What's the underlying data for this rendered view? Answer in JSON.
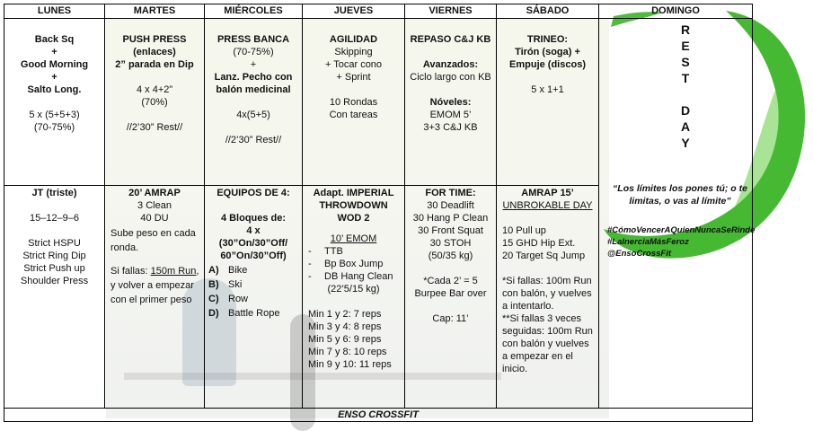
{
  "days": [
    "LUNES",
    "MARTES",
    "MIÉRCOLES",
    "JUEVES",
    "VIERNES",
    "SÁBADO",
    "DOMINGO"
  ],
  "top": {
    "lunes": [
      "Back Sq",
      "+",
      "Good Morning",
      "+",
      "Salto Long.",
      "",
      "5 x (5+5+3)",
      "(70-75%)"
    ],
    "martes": {
      "title": "PUSH PRESS",
      "lines": [
        "(enlaces)",
        "2” parada en Dip",
        "",
        "4 x 4+2”",
        "(70%)",
        "",
        "//2’30” Rest//"
      ]
    },
    "miercoles": {
      "title": "PRESS BANCA",
      "lines": [
        "(70-75%)",
        "+"
      ],
      "bold2": "Lanz. Pecho con balón medicinal",
      "lines2": [
        "",
        "4x(5+5)",
        "",
        "//2’30” Rest//"
      ]
    },
    "jueves": {
      "title": "AGILIDAD",
      "lines": [
        "Skipping",
        "+ Tocar cono",
        "+ Sprint",
        "",
        "10 Rondas",
        "Con tareas"
      ]
    },
    "viernes": {
      "title": "REPASO C&J KB",
      "adv": "Avanzados:",
      "adv_text": "Ciclo largo con KB",
      "nov": "Nóveles:",
      "nov_lines": [
        "EMOM 5’",
        "3+3 C&J KB"
      ]
    },
    "sabado": {
      "title": "TRINEO:",
      "bold_lines": [
        "Tirón (soga) +",
        "Empuje (discos)"
      ],
      "scheme": "5 x 1+1"
    },
    "domingo_letters": [
      "R",
      "E",
      "S",
      "T",
      "",
      "D",
      "A",
      "Y"
    ]
  },
  "bottom": {
    "lunes": {
      "title": "JT (triste)",
      "scheme": "15–12–9–6",
      "moves": [
        "Strict HSPU",
        "Strict Ring Dip",
        "Strict Push up",
        "Shoulder Press"
      ]
    },
    "martes": {
      "title": "20’ AMRAP",
      "lines": [
        "3 Clean",
        "40 DU"
      ],
      "p1": "Sube peso en cada ronda.",
      "p2a": "Si fallas: ",
      "p2u": "150m Run",
      "p2b": ", y volver a empezar con el primer peso"
    },
    "miercoles": {
      "title": "EQUIPOS DE 4:",
      "sub": "4 Bloques de:",
      "sub2": "4 x",
      "sub3": "(30”On/30”Off/ 60”On/30”Off)",
      "items": [
        {
          "k": "A)",
          "v": "Bike"
        },
        {
          "k": "B)",
          "v": "Ski"
        },
        {
          "k": "C)",
          "v": "Row"
        },
        {
          "k": "D)",
          "v": "Battle Rope"
        }
      ]
    },
    "jueves": {
      "title": "Adapt. IMPERIAL THROWDOWN WOD 2",
      "emom": "10’ EMOM",
      "items": [
        "TTB",
        "Bp Box Jump",
        "DB Hang Clean"
      ],
      "weight": "(22’5/15 kg)",
      "reps": [
        "Min 1 y 2: 7 reps",
        "Min 3 y 4: 8 reps",
        "Min 5 y 6: 9 reps",
        "Min 7 y 8: 10 reps",
        "Min 9 y 10: 11 reps"
      ]
    },
    "viernes": {
      "title": "FOR TIME:",
      "lines": [
        "30 Deadlift",
        "30 Hang P Clean",
        "30 Front Squat",
        "30 STOH",
        "(50/35 kg)",
        "",
        "*Cada 2’ = 5",
        "Burpee Bar over",
        "",
        "Cap: 11’"
      ]
    },
    "sabado": {
      "title": "AMRAP 15’",
      "sub": "UNBROKABLE DAY",
      "lines": [
        "10 Pull up",
        "15 GHD Hip Ext.",
        "20 Target Sq Jump"
      ],
      "notes": [
        "*Si fallas: 100m Run con balón, y vuelves a intentarlo.",
        "**Si fallas 3 veces seguidas: 100m Run con balón y vuelves a empezar en el inicio."
      ]
    },
    "domingo": {
      "quote": "“Los límites los pones tú; o te limitas, o vas al límite”",
      "tags": [
        "#CómoVencerAQuienNuncaSeRinde",
        "#LaInerciaMásFeroz",
        "@EnsoCrossFit"
      ]
    }
  },
  "footer": "ENSO CROSSFIT",
  "colors": {
    "enso": "#3cb527"
  }
}
